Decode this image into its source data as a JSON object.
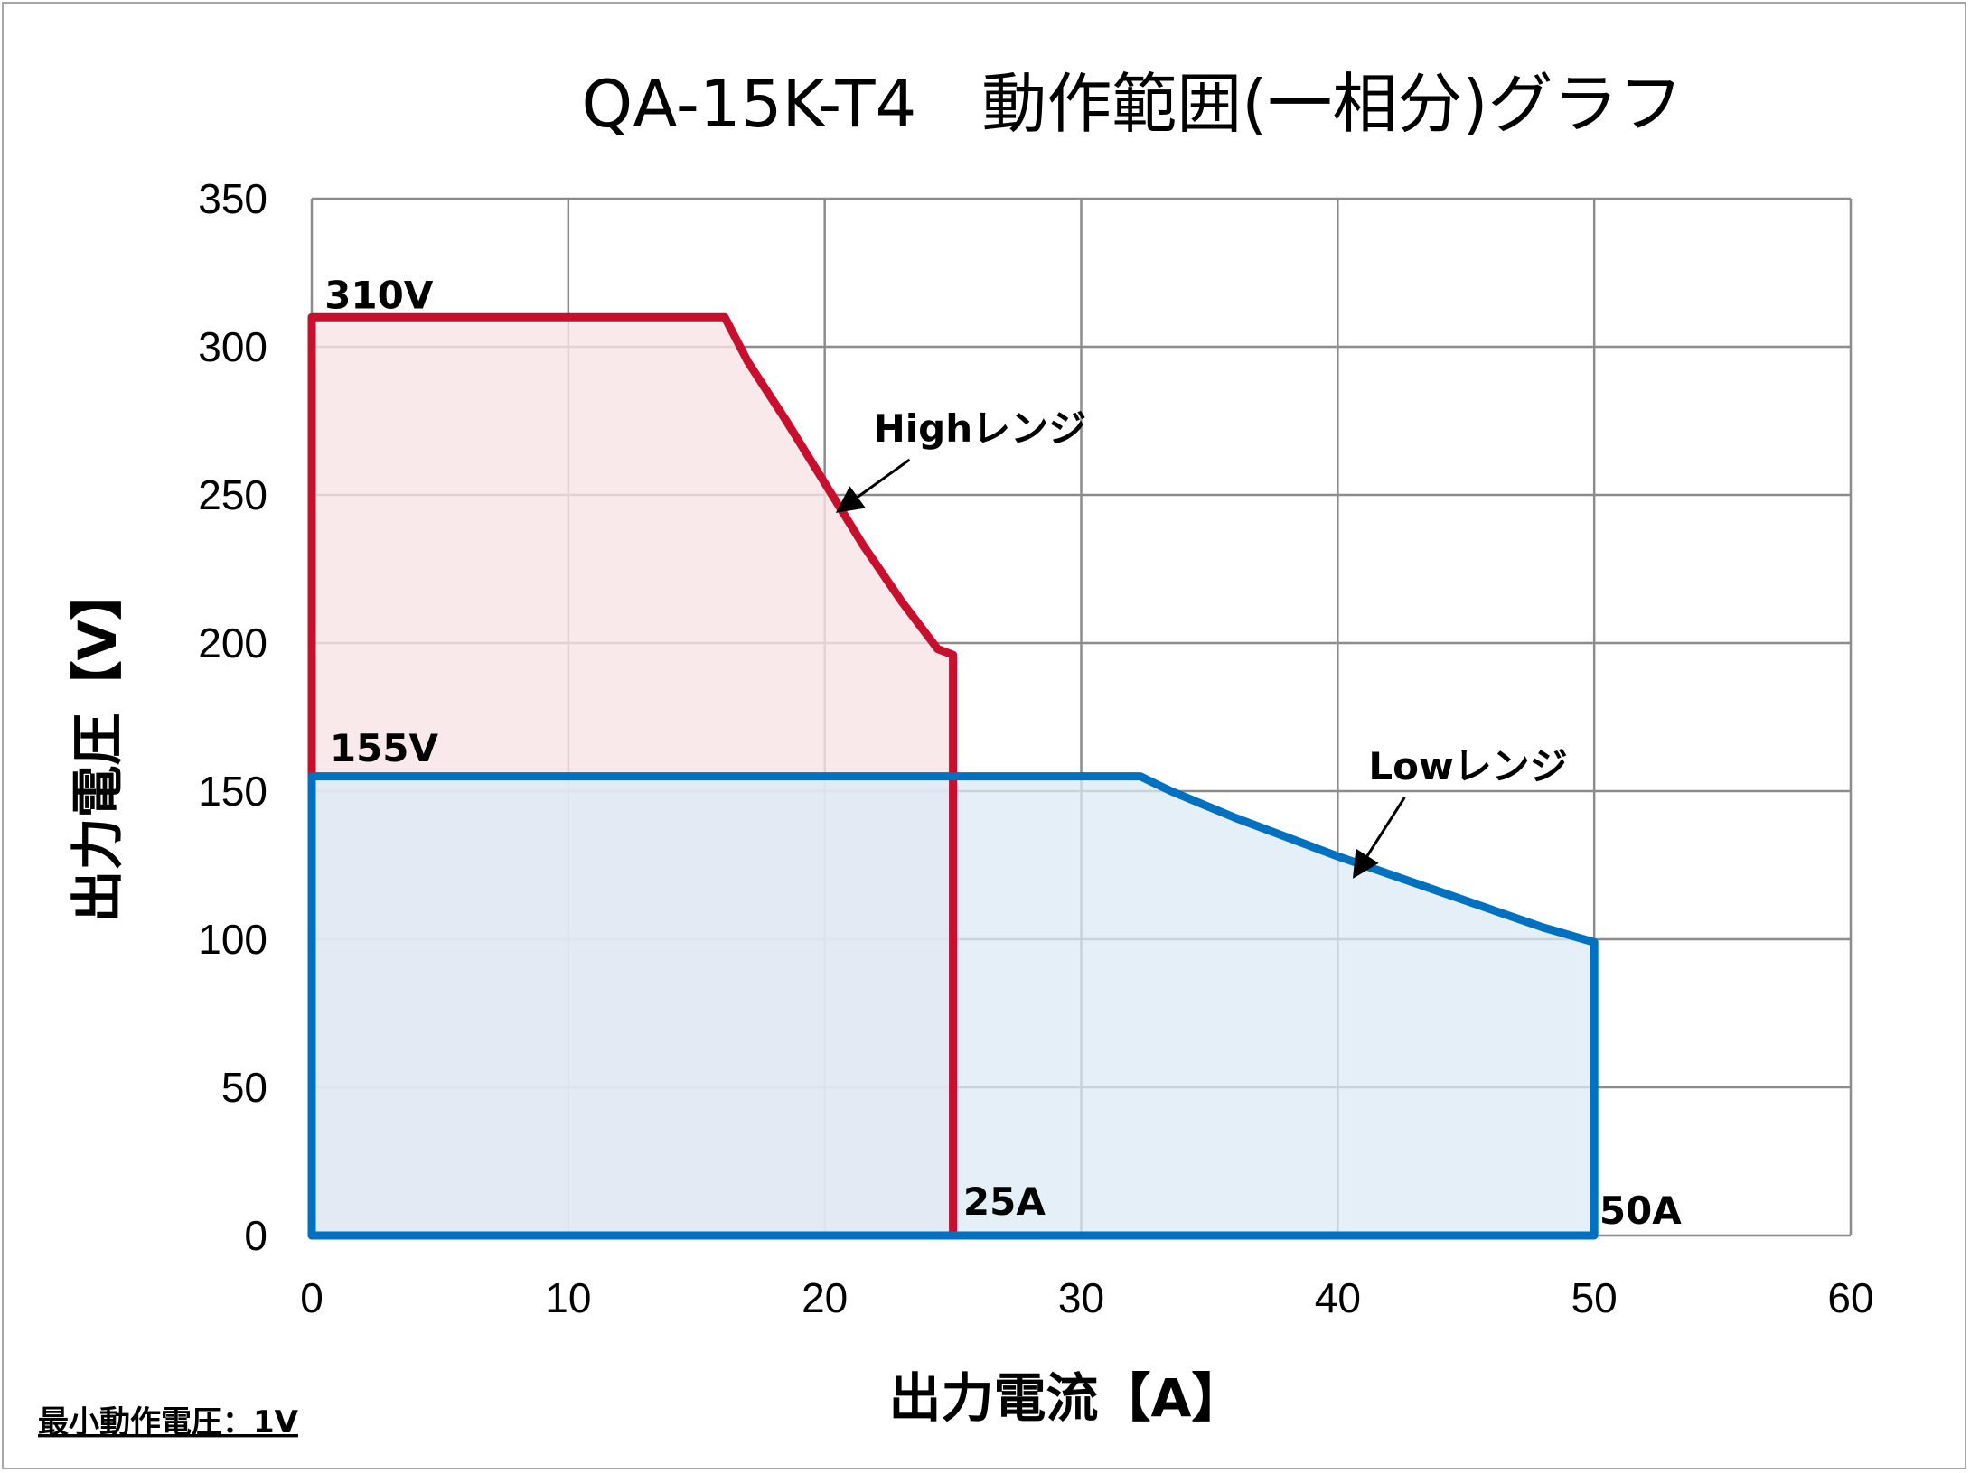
{
  "chart_data": {
    "type": "area",
    "title": "QA-15K-T4　動作範囲(一相分)グラフ",
    "xlabel": "出力電流【A】",
    "ylabel": "出力電圧【V】",
    "xlim": [
      0,
      60
    ],
    "ylim": [
      0,
      350
    ],
    "xticks": [
      0,
      10,
      20,
      30,
      40,
      50,
      60
    ],
    "yticks": [
      0,
      50,
      100,
      150,
      200,
      250,
      300,
      350
    ],
    "grid": true,
    "series": [
      {
        "name": "Highレンジ",
        "color": "#c8102e",
        "fill": "#f8e4e6",
        "points": [
          [
            0,
            310
          ],
          [
            16.1,
            310
          ],
          [
            17,
            295
          ],
          [
            18.5,
            275
          ],
          [
            20,
            254
          ],
          [
            21.5,
            233
          ],
          [
            23,
            214
          ],
          [
            24.4,
            198
          ],
          [
            25,
            196
          ],
          [
            25,
            0
          ],
          [
            0,
            0
          ]
        ]
      },
      {
        "name": "Lowレンジ",
        "color": "#0070c0",
        "fill": "#dbe9f5",
        "points": [
          [
            0,
            155
          ],
          [
            32.3,
            155
          ],
          [
            33.5,
            150
          ],
          [
            36,
            141
          ],
          [
            40,
            128
          ],
          [
            44,
            116
          ],
          [
            48,
            104
          ],
          [
            50,
            99
          ],
          [
            50,
            0
          ],
          [
            0,
            0
          ]
        ]
      }
    ],
    "annotations": [
      {
        "text": "310V",
        "x": 0.5,
        "y": 313
      },
      {
        "text": "155V",
        "x": 0.7,
        "y": 160
      },
      {
        "text": "25A",
        "x": 25.4,
        "y": 7
      },
      {
        "text": "50A",
        "x": 50.2,
        "y": 4
      },
      {
        "text": "Highレンジ",
        "x": 21.9,
        "y": 268,
        "arrow_to": [
          20.6,
          245
        ]
      },
      {
        "text": "Lowレンジ",
        "x": 41.2,
        "y": 154,
        "arrow_to": [
          40.7,
          122
        ]
      }
    ]
  },
  "footnote": "最小動作電圧：1V"
}
